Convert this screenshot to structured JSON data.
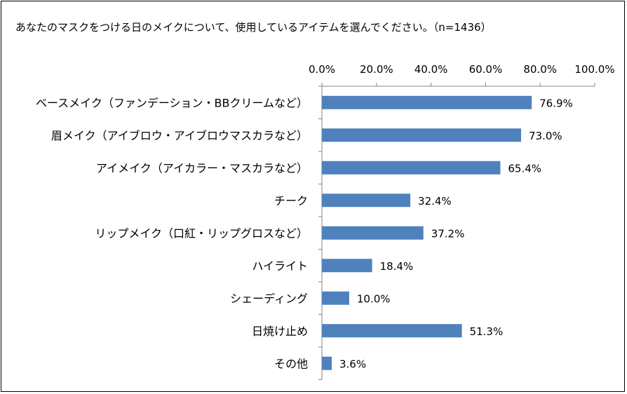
{
  "chart_data": {
    "type": "bar",
    "orientation": "horizontal",
    "title": "あなたのマスクをつける日のメイクについて、使用しているアイテムを選んでください。（n=1436）",
    "xlim": [
      0,
      100
    ],
    "ticks": [
      "0.0%",
      "20.0%",
      "40.0%",
      "60.0%",
      "80.0%",
      "100.0%"
    ],
    "grid": false,
    "bar_color": "#4F81BD",
    "categories": [
      "ベースメイク（ファンデーション・BBクリームなど）",
      "眉メイク（アイブロウ・アイブロウマスカラなど）",
      "アイメイク（アイカラー・マスカラなど）",
      "チーク",
      "リップメイク（口紅・リップグロスなど）",
      "ハイライト",
      "シェーディング",
      "日焼け止め",
      "その他"
    ],
    "values": [
      76.9,
      73.0,
      65.4,
      32.4,
      37.2,
      18.4,
      10.0,
      51.3,
      3.6
    ],
    "value_labels": [
      "76.9%",
      "73.0%",
      "65.4%",
      "32.4%",
      "37.2%",
      "18.4%",
      "10.0%",
      "51.3%",
      "3.6%"
    ]
  }
}
